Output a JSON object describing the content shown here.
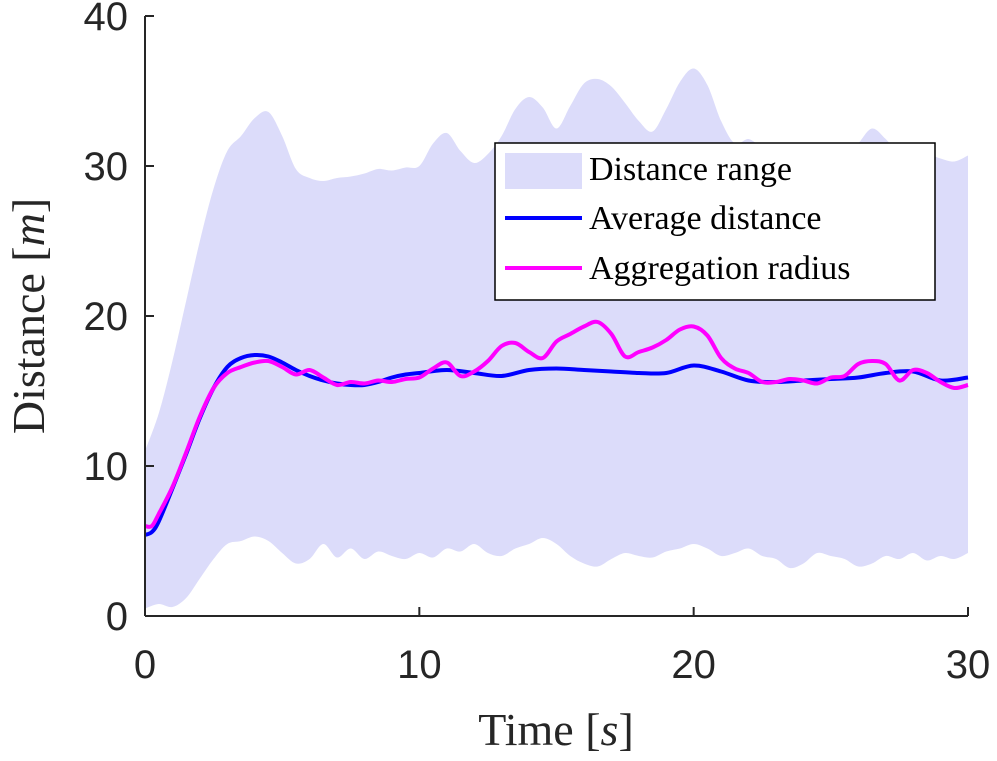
{
  "chart_data": {
    "type": "line",
    "title": "",
    "xlabel": "Time",
    "xunit": "s",
    "ylabel": "Distance",
    "yunit": "m",
    "xlim": [
      0,
      30
    ],
    "ylim": [
      0,
      40
    ],
    "xticks": [
      0,
      10,
      20,
      30
    ],
    "yticks": [
      0,
      10,
      20,
      30,
      40
    ],
    "grid": false,
    "legend_position": "upper-right",
    "series": [
      {
        "name": "Distance range",
        "kind": "band",
        "color": "#dcdcfa",
        "x": [
          0,
          0.5,
          1,
          1.5,
          2,
          2.5,
          3,
          3.5,
          4,
          4.5,
          5,
          5.5,
          6,
          6.5,
          7,
          7.5,
          8,
          8.5,
          9,
          9.5,
          10,
          10.5,
          11,
          11.5,
          12,
          12.5,
          13,
          13.5,
          14,
          14.5,
          15,
          15.5,
          16,
          16.5,
          17,
          17.5,
          18,
          18.5,
          19,
          19.5,
          20,
          20.5,
          21,
          21.5,
          22,
          22.5,
          23,
          23.5,
          24,
          24.5,
          25,
          25.5,
          26,
          26.5,
          27,
          27.5,
          28,
          28.5,
          29,
          29.5,
          30
        ],
        "lower": [
          0.5,
          0.8,
          0.6,
          1.2,
          2.5,
          3.8,
          4.8,
          5.0,
          5.3,
          5.0,
          4.2,
          3.5,
          3.8,
          4.8,
          3.9,
          4.5,
          3.8,
          4.3,
          4.0,
          3.8,
          4.2,
          3.9,
          4.5,
          4.3,
          4.8,
          4.2,
          4.0,
          4.5,
          4.8,
          5.2,
          4.8,
          4.0,
          3.5,
          3.3,
          3.8,
          4.2,
          4.0,
          3.9,
          4.3,
          4.5,
          4.8,
          4.5,
          4.0,
          4.2,
          4.5,
          4.0,
          3.8,
          3.2,
          3.5,
          4.2,
          4.0,
          3.8,
          3.3,
          3.5,
          4.0,
          3.8,
          4.2,
          3.7,
          4.0,
          3.8,
          4.2
        ],
        "upper": [
          11.0,
          13.5,
          17.0,
          21.0,
          25.0,
          28.5,
          31.0,
          32.0,
          33.2,
          33.6,
          32.0,
          29.8,
          29.2,
          29.0,
          29.2,
          29.3,
          29.5,
          29.8,
          29.7,
          29.9,
          30.0,
          31.5,
          32.2,
          31.0,
          30.2,
          30.8,
          32.0,
          33.8,
          34.6,
          33.9,
          32.5,
          34.0,
          35.5,
          35.8,
          35.3,
          34.2,
          33.0,
          32.3,
          33.8,
          35.6,
          36.5,
          35.4,
          33.0,
          31.5,
          31.8,
          31.2,
          30.8,
          31.0,
          31.5,
          31.5,
          31.2,
          30.5,
          31.5,
          32.5,
          31.8,
          30.8,
          30.8,
          30.8,
          30.5,
          30.3,
          30.7
        ]
      },
      {
        "name": "Average distance",
        "kind": "line",
        "color": "#0000ff",
        "x": [
          0,
          0.25,
          0.5,
          1,
          1.5,
          2,
          2.5,
          3,
          3.5,
          4,
          4.5,
          5,
          5.5,
          6,
          6.5,
          7,
          7.5,
          8,
          8.5,
          9,
          9.5,
          10,
          11,
          12,
          13,
          14,
          15,
          16,
          17,
          18,
          19,
          20,
          21,
          22,
          23,
          24,
          25,
          26,
          27,
          28,
          29,
          30
        ],
        "values": [
          5.4,
          5.6,
          6.3,
          8.5,
          10.8,
          13.2,
          15.2,
          16.6,
          17.2,
          17.4,
          17.3,
          16.9,
          16.4,
          16.0,
          15.7,
          15.5,
          15.4,
          15.4,
          15.6,
          15.9,
          16.1,
          16.2,
          16.4,
          16.2,
          16.0,
          16.4,
          16.5,
          16.4,
          16.3,
          16.2,
          16.2,
          16.7,
          16.3,
          15.7,
          15.6,
          15.7,
          15.8,
          15.9,
          16.2,
          16.3,
          15.7,
          15.9
        ]
      },
      {
        "name": "Aggregation radius",
        "kind": "line",
        "color": "#ff00ff",
        "x": [
          0,
          0.25,
          0.5,
          1,
          1.5,
          2,
          2.5,
          3,
          3.5,
          4,
          4.5,
          5,
          5.5,
          6,
          6.5,
          7,
          7.5,
          8,
          8.5,
          9,
          9.5,
          10,
          10.5,
          11,
          11.5,
          12,
          12.5,
          13,
          13.5,
          14,
          14.5,
          15,
          15.5,
          16,
          16.5,
          17,
          17.5,
          18,
          18.5,
          19,
          19.5,
          20,
          20.5,
          21,
          21.5,
          22,
          22.5,
          23,
          23.5,
          24,
          24.5,
          25,
          25.5,
          26,
          26.5,
          27,
          27.5,
          28,
          28.5,
          29,
          29.5,
          30
        ],
        "values": [
          6.0,
          6.0,
          6.8,
          8.6,
          10.9,
          13.3,
          15.2,
          16.2,
          16.6,
          16.9,
          17.0,
          16.6,
          16.1,
          16.4,
          15.9,
          15.4,
          15.6,
          15.5,
          15.7,
          15.6,
          15.8,
          15.9,
          16.5,
          16.9,
          16.0,
          16.3,
          17.0,
          18.0,
          18.2,
          17.6,
          17.2,
          18.3,
          18.8,
          19.3,
          19.6,
          18.8,
          17.3,
          17.6,
          17.9,
          18.4,
          19.1,
          19.3,
          18.7,
          17.2,
          16.5,
          16.2,
          15.6,
          15.6,
          15.8,
          15.7,
          15.5,
          15.9,
          16.0,
          16.8,
          17.0,
          16.8,
          15.7,
          16.4,
          16.2,
          15.6,
          15.2,
          15.4
        ]
      }
    ]
  }
}
